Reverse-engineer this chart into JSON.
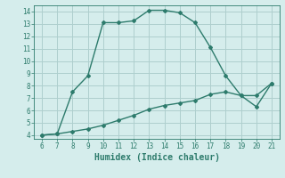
{
  "xlabel": "Humidex (Indice chaleur)",
  "line1_x": [
    6,
    7,
    8,
    9,
    10,
    11,
    12,
    13,
    14,
    15,
    16,
    17,
    18,
    19,
    20,
    21
  ],
  "line1_y": [
    4.0,
    4.1,
    7.5,
    8.8,
    13.1,
    13.1,
    13.25,
    14.1,
    14.1,
    13.9,
    13.1,
    11.1,
    8.8,
    7.2,
    7.2,
    8.2
  ],
  "line2_x": [
    6,
    7,
    8,
    9,
    10,
    11,
    12,
    13,
    14,
    15,
    16,
    17,
    18,
    19,
    20,
    21
  ],
  "line2_y": [
    4.0,
    4.1,
    4.3,
    4.5,
    4.8,
    5.2,
    5.6,
    6.1,
    6.4,
    6.6,
    6.8,
    7.3,
    7.5,
    7.2,
    6.3,
    8.2
  ],
  "line_color": "#2d7b6c",
  "bg_color": "#d5edec",
  "grid_color": "#aecfce",
  "xlim": [
    5.5,
    21.5
  ],
  "ylim": [
    3.7,
    14.5
  ],
  "xticks": [
    6,
    7,
    8,
    9,
    10,
    11,
    12,
    13,
    14,
    15,
    16,
    17,
    18,
    19,
    20,
    21
  ],
  "yticks": [
    4,
    5,
    6,
    7,
    8,
    9,
    10,
    11,
    12,
    13,
    14
  ],
  "tick_fontsize": 5.5,
  "xlabel_fontsize": 7,
  "marker": "D",
  "marker_size": 2.0,
  "linewidth": 1.0
}
